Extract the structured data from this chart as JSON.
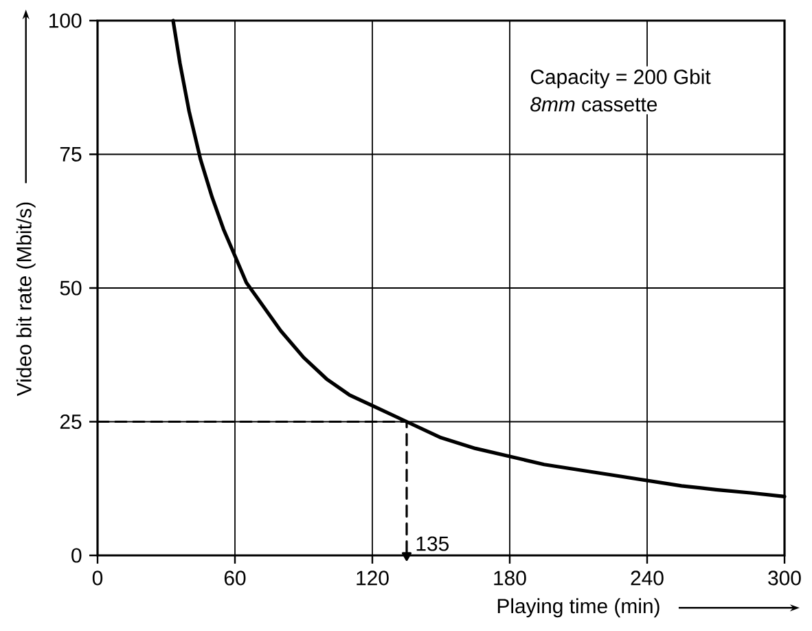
{
  "chart_data": {
    "type": "line",
    "xlabel": "Playing time (min)",
    "ylabel": "Video bit rate (Mbit/s)",
    "xlim": [
      0,
      300
    ],
    "xticks": [
      0,
      60,
      120,
      180,
      240,
      300
    ],
    "ylim": [
      0,
      100
    ],
    "yticks": [
      0,
      25,
      50,
      75,
      100
    ],
    "grid": true,
    "marker": "none",
    "series": [
      {
        "color": "#000000",
        "line_style": "solid",
        "x": [
          33,
          36,
          40,
          45,
          50,
          55,
          60,
          65,
          70,
          80,
          90,
          100,
          110,
          120,
          135,
          150,
          165,
          180,
          195,
          210,
          225,
          240,
          255,
          270,
          285,
          300
        ],
        "values": [
          100,
          92,
          83,
          74,
          67,
          61,
          56,
          51,
          48,
          42,
          37,
          33,
          30,
          28,
          25,
          22,
          20,
          18.5,
          17,
          16,
          15,
          14,
          13,
          12.3,
          11.7,
          11
        ]
      },
      {
        "color": "#000000",
        "line_style": "dashed",
        "x": [
          0,
          135,
          135
        ],
        "values": [
          25,
          25,
          0
        ]
      }
    ],
    "annotations": [
      "Capacity = 200 Gbit",
      "*8mm* cassette",
      {
        "text": "135",
        "x": 135,
        "y": 0
      }
    ]
  }
}
